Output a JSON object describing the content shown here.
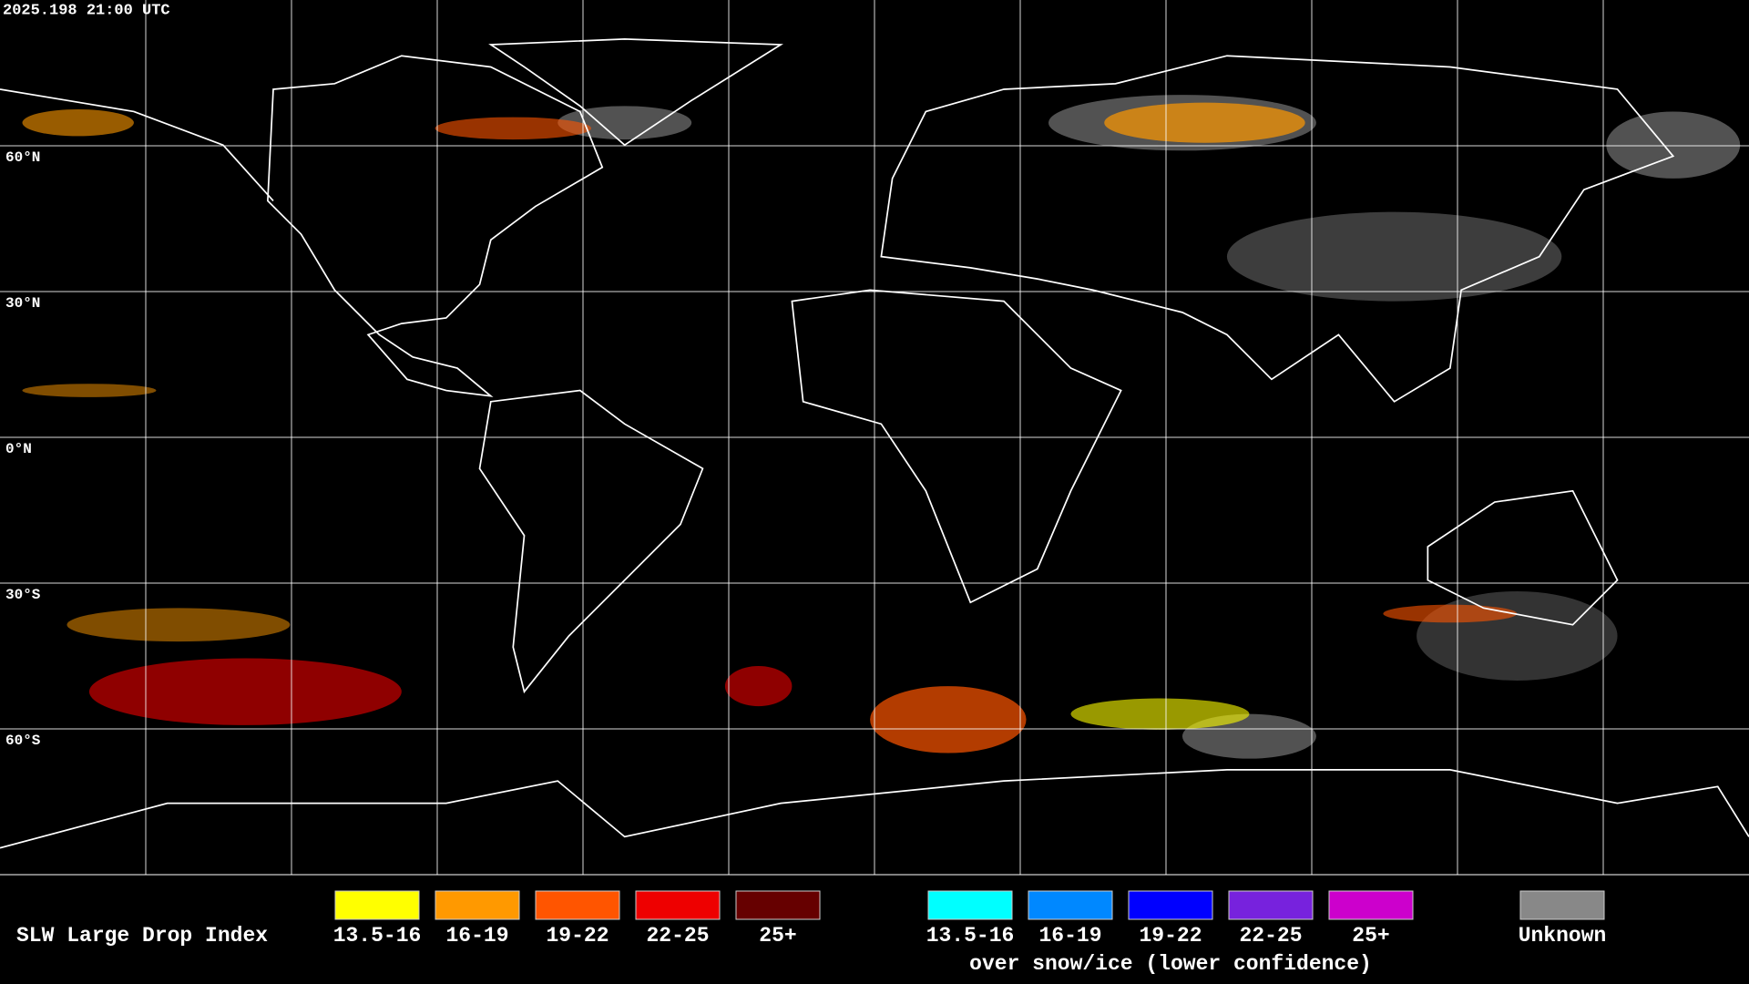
{
  "header": {
    "timestamp": "2025.198 21:00 UTC"
  },
  "grid": {
    "lat_labels": [
      "60°N",
      "30°N",
      "0°N",
      "30°S",
      "60°S"
    ]
  },
  "legend": {
    "title": "SLW Large Drop Index",
    "groups": [
      {
        "items": [
          {
            "label": "13.5-16",
            "color": "#ffff00"
          },
          {
            "label": "16-19",
            "color": "#ff9900"
          },
          {
            "label": "19-22",
            "color": "#ff5500"
          },
          {
            "label": "22-25",
            "color": "#ee0000"
          },
          {
            "label": "25+",
            "color": "#660000"
          }
        ]
      },
      {
        "items": [
          {
            "label": "13.5-16",
            "color": "#00ffff"
          },
          {
            "label": "16-19",
            "color": "#0088ff"
          },
          {
            "label": "19-22",
            "color": "#0000ff"
          },
          {
            "label": "22-25",
            "color": "#7722dd"
          },
          {
            "label": "25+",
            "color": "#cc00cc"
          }
        ],
        "note": "over snow/ice (lower confidence)"
      }
    ],
    "unknown": {
      "label": "Unknown",
      "color": "#888888"
    }
  }
}
